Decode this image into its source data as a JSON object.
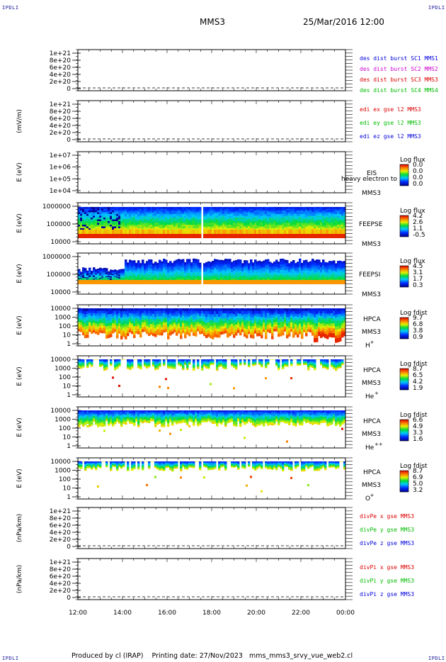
{
  "header": {
    "corner_tl": "IPDLI",
    "corner_tr": "IPDLI",
    "corner_bl": "IPDLI",
    "corner_br": "IPDLI",
    "mission": "MMS3",
    "time": "25/Mar/2016 12:00"
  },
  "footer": {
    "producer": "Produced by cl (IRAP)",
    "printing": "Printing date: 27/Nov/2023",
    "script": "mms_mms3_srvy_vue_web2.cl"
  },
  "colors": {
    "blue": "#0000dd",
    "magenta": "#cc00cc",
    "red": "#dd0000",
    "green": "#00bb00"
  },
  "chart_data": [
    {
      "type": "line",
      "ylabel": "",
      "y_ticks": [
        "1e+21",
        "8e+20",
        "6e+20",
        "4e+20",
        "2e+20",
        "0"
      ],
      "series": [
        {
          "name": "des dist burst SC1 MMS1",
          "color": "#0000dd",
          "values": []
        },
        {
          "name": "des dist burst SC2 MMS2",
          "color": "#cc00cc",
          "values": []
        },
        {
          "name": "des dist burst SC3 MMS3",
          "color": "#dd0000",
          "values": []
        },
        {
          "name": "des dist burst SC4 MMS4",
          "color": "#00bb00",
          "values": []
        }
      ]
    },
    {
      "type": "line",
      "ylabel": "(mV/m)",
      "y_ticks": [
        "1e+21",
        "8e+20",
        "6e+20",
        "4e+20",
        "2e+20",
        "0"
      ],
      "series": [
        {
          "name": "edi ex gse l2 MMS3",
          "color": "#dd0000",
          "values": []
        },
        {
          "name": "edi ey gse l2 MMS3",
          "color": "#00bb00",
          "values": []
        },
        {
          "name": "edi ez gse l2 MMS3",
          "color": "#0000dd",
          "values": []
        }
      ]
    },
    {
      "type": "heatmap",
      "ylabel": "E (eV)",
      "y_ticks": [
        "1e+07",
        "1e+06",
        "1e+05",
        "1e+04"
      ],
      "instrument": "EIS",
      "spacecraft": "MMS3",
      "overlay_label": "heavy electron to",
      "colorbar": {
        "title": "Log flux",
        "ticks": [
          "0.0",
          "0.0",
          "0.0",
          "0.0"
        ]
      }
    },
    {
      "type": "heatmap",
      "ylabel": "E (eV)",
      "y_ticks": [
        "1000000",
        "100000",
        "10000"
      ],
      "instrument": "FEEPSE",
      "spacecraft": "MMS3",
      "colorbar": {
        "title": "Log flux",
        "ticks": [
          "4.2",
          "2.6",
          "1.1",
          "-0.5"
        ]
      }
    },
    {
      "type": "heatmap",
      "ylabel": "E (eV)",
      "y_ticks": [
        "1000000",
        "100000",
        "10000"
      ],
      "instrument": "FEEPSI",
      "spacecraft": "MMS3",
      "colorbar": {
        "title": "Log flux",
        "ticks": [
          "4.5",
          "3.1",
          "1.7",
          "0.3"
        ]
      }
    },
    {
      "type": "heatmap",
      "ylabel": "E (eV)",
      "y_ticks": [
        "10000",
        "1000",
        "100",
        "10",
        "1"
      ],
      "instrument": "HPCA",
      "spacecraft": "MMS3",
      "species": "H",
      "species_sup": "+",
      "colorbar": {
        "title": "Log fdist",
        "ticks": [
          "9.7",
          "6.8",
          "3.8",
          "0.9"
        ]
      }
    },
    {
      "type": "heatmap",
      "ylabel": "E (eV)",
      "y_ticks": [
        "10000",
        "1000",
        "100",
        "10",
        "1"
      ],
      "instrument": "HPCA",
      "spacecraft": "MMS3",
      "species": "He",
      "species_sup": "+",
      "colorbar": {
        "title": "Log fdist",
        "ticks": [
          "8.7",
          "6.5",
          "4.2",
          "1.9"
        ]
      }
    },
    {
      "type": "heatmap",
      "ylabel": "E (eV)",
      "y_ticks": [
        "10000",
        "1000",
        "100",
        "10",
        "1"
      ],
      "instrument": "HPCA",
      "spacecraft": "MMS3",
      "species": "He",
      "species_sup": "++",
      "colorbar": {
        "title": "Log fdist",
        "ticks": [
          "6.6",
          "4.9",
          "3.3",
          "1.6"
        ]
      }
    },
    {
      "type": "heatmap",
      "ylabel": "E (eV)",
      "y_ticks": [
        "10000",
        "1000",
        "100",
        "10",
        "1"
      ],
      "instrument": "HPCA",
      "spacecraft": "MMS3",
      "species": "O",
      "species_sup": "+",
      "colorbar": {
        "title": "Log fdist",
        "ticks": [
          "8.7",
          "6.9",
          "5.0",
          "3.2"
        ]
      }
    },
    {
      "type": "line",
      "ylabel": "(nPa/km)",
      "y_ticks": [
        "1e+21",
        "8e+20",
        "6e+20",
        "4e+20",
        "2e+20",
        "0"
      ],
      "series": [
        {
          "name": "divPe x gse MMS3",
          "color": "#dd0000",
          "values": []
        },
        {
          "name": "divPe y gse MMS3",
          "color": "#00bb00",
          "values": []
        },
        {
          "name": "divPe z gse MMS3",
          "color": "#0000dd",
          "values": []
        }
      ]
    },
    {
      "type": "line",
      "ylabel": "(nPa/km)",
      "y_ticks": [
        "1e+21",
        "8e+20",
        "6e+20",
        "4e+20",
        "2e+20",
        "0"
      ],
      "series": [
        {
          "name": "divPi x gse MMS3",
          "color": "#dd0000",
          "values": []
        },
        {
          "name": "divPi y gse MMS3",
          "color": "#00bb00",
          "values": []
        },
        {
          "name": "divPi z gse MMS3",
          "color": "#0000dd",
          "values": []
        }
      ]
    }
  ],
  "x_axis": {
    "ticks": [
      "12:00",
      "14:00",
      "16:00",
      "18:00",
      "20:00",
      "22:00",
      "00:00"
    ]
  }
}
